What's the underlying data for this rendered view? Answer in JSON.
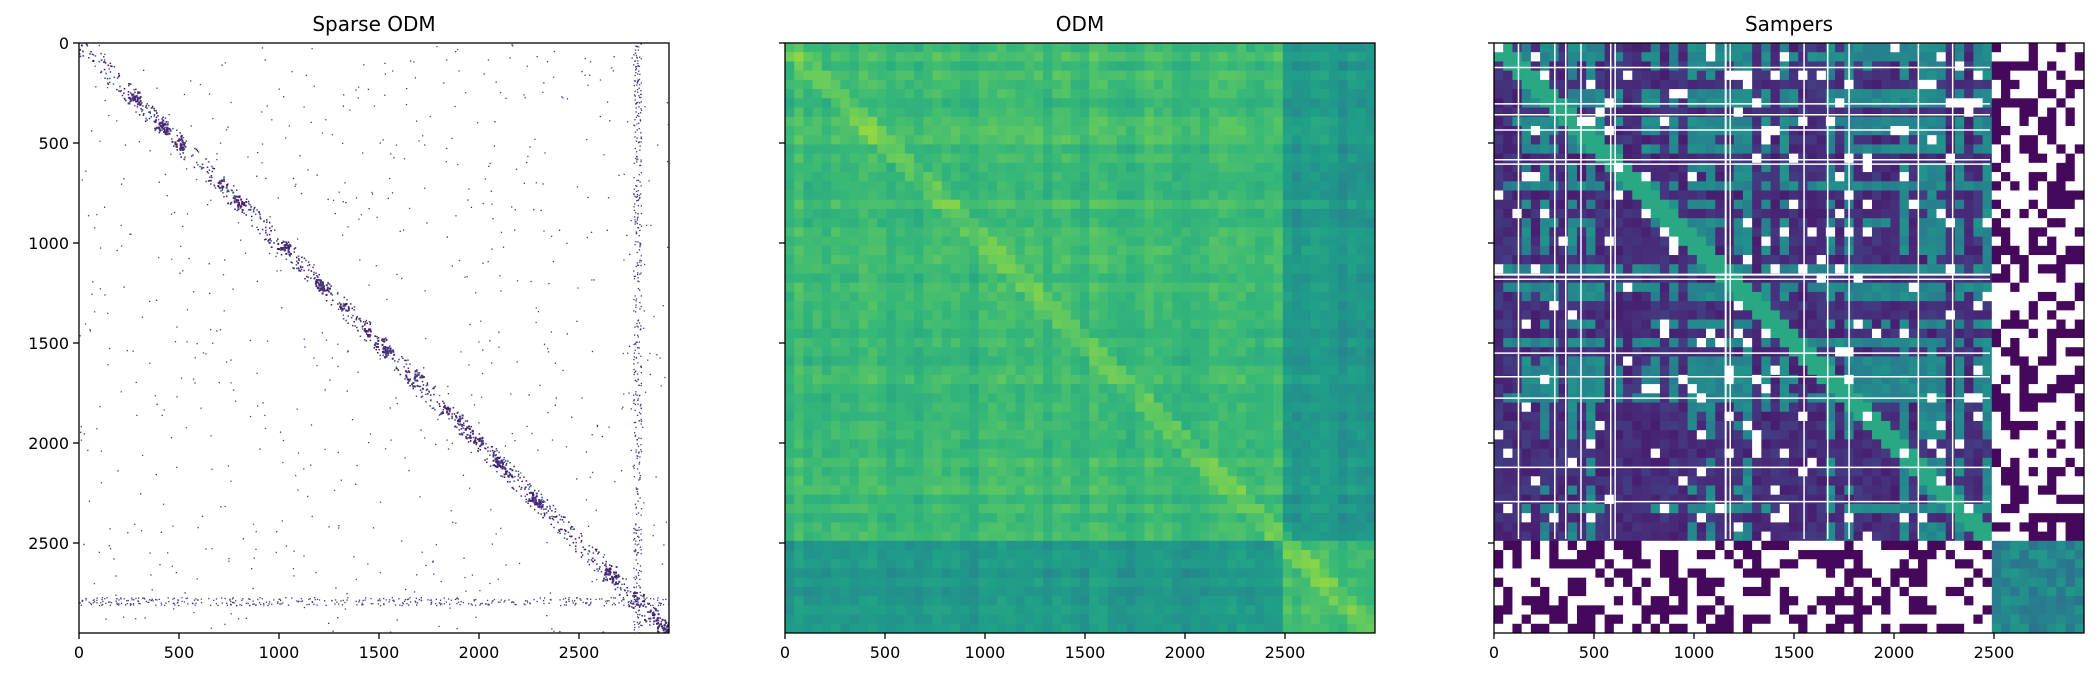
{
  "chart_data": [
    {
      "type": "heatmap",
      "title": "Sparse ODM",
      "xlabel": "",
      "ylabel": "",
      "xlim": [
        0,
        2950
      ],
      "ylim": [
        2950,
        0
      ],
      "x_ticks": [
        0,
        500,
        1000,
        1500,
        2000,
        2500
      ],
      "y_ticks": [
        0,
        500,
        1000,
        1500,
        2000,
        2500
      ],
      "y_tick_labels_visible": true,
      "colormap": "viridis",
      "background": "#ffffff",
      "pattern": "sparse points concentrated along the diagonal; dense vertical band near x=2790 and horizontal band near y=2790",
      "bands": [
        2790
      ]
    },
    {
      "type": "heatmap",
      "title": "ODM",
      "xlabel": "",
      "ylabel": "",
      "xlim": [
        0,
        2950
      ],
      "ylim": [
        2950,
        0
      ],
      "x_ticks": [
        0,
        500,
        1000,
        1500,
        2000,
        2500
      ],
      "y_ticks": [
        0,
        500,
        1000,
        1500,
        2000,
        2500
      ],
      "y_tick_labels_visible": false,
      "colormap": "viridis",
      "background": "#ffffff",
      "pattern": "dense green field with vertical/horizontal stripes; darker block boundary at 2480; bright patch near (1370,1370)",
      "bands": [
        2480
      ]
    },
    {
      "type": "heatmap",
      "title": "Sampers",
      "xlabel": "",
      "ylabel": "",
      "xlim": [
        0,
        2950
      ],
      "ylim": [
        2950,
        0
      ],
      "x_ticks": [
        0,
        500,
        1000,
        1500,
        2000,
        2500
      ],
      "y_ticks": [
        0,
        500,
        1000,
        1500,
        2000,
        2500
      ],
      "y_tick_labels_visible": false,
      "colormap": "viridis",
      "background": "#ffffff",
      "pattern": "dark purple/teal blocks with white gaps; white region beyond 2480 on both axes; bright diagonal",
      "bands": [
        2480
      ]
    }
  ],
  "colors": {
    "viridis_dark": "#440154",
    "viridis_purple": "#3b2a6b",
    "viridis_blue": "#2c728e",
    "viridis_teal": "#21918c",
    "viridis_green": "#5ec962",
    "viridis_yellow": "#b5de2b"
  }
}
